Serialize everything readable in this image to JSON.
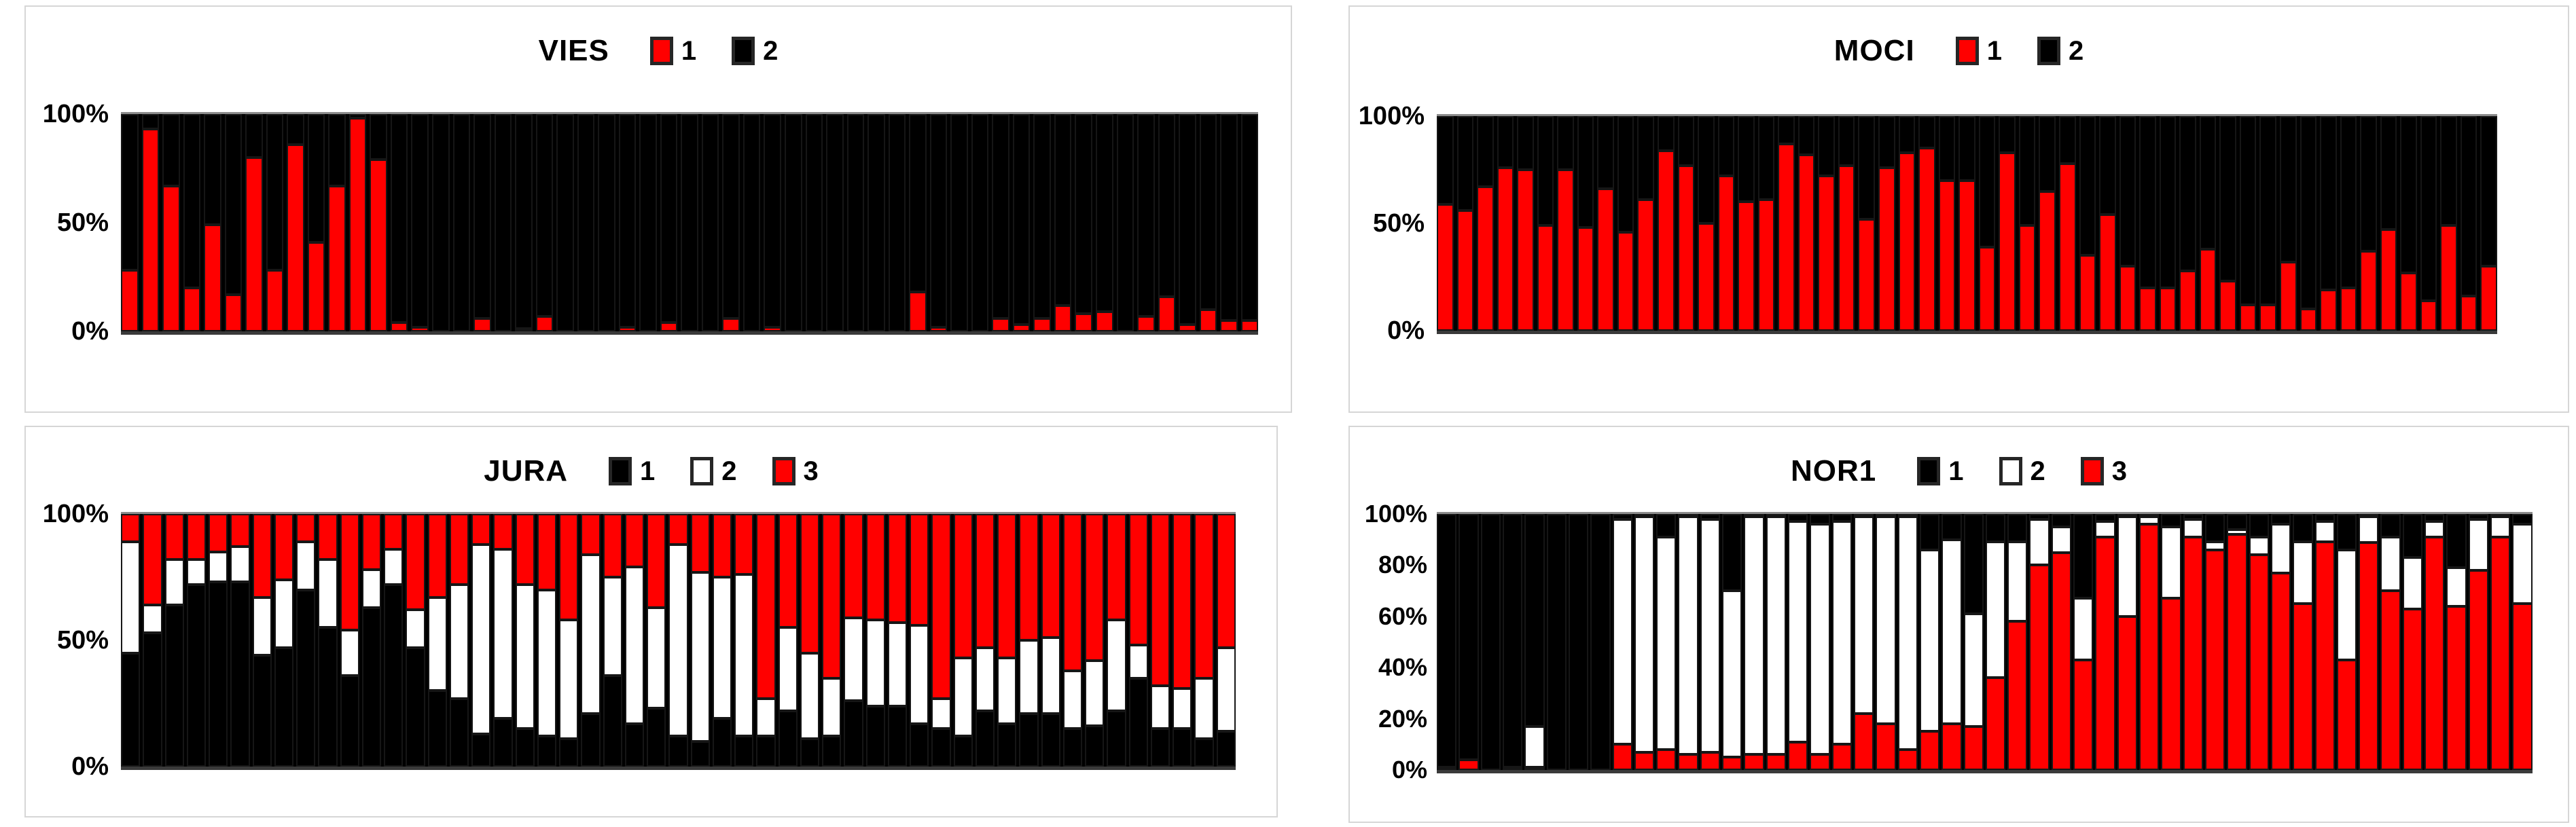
{
  "page": {
    "background": "#ffffff"
  },
  "chart_data": [
    {
      "id": "vies",
      "type": "bar",
      "subtype": "stacked-percent-column",
      "title": "VIES",
      "legend": [
        {
          "label": "1",
          "color": "#ff0000"
        },
        {
          "label": "2",
          "color": "#000000"
        }
      ],
      "legend_position": "top-center",
      "yticks": [
        {
          "label": "100%",
          "value": 100
        },
        {
          "label": "50%",
          "value": 50
        },
        {
          "label": "0%",
          "value": 0
        }
      ],
      "ylim": [
        0,
        100
      ],
      "grid": false,
      "n_bars": 55,
      "stack_bottom_to_top": [
        "1",
        "2"
      ],
      "series": [
        {
          "name": "1",
          "color": "#ff0000",
          "values": [
            28,
            93,
            67,
            20,
            49,
            17,
            80,
            28,
            86,
            41,
            67,
            98,
            79,
            4,
            2,
            0,
            0,
            6,
            0,
            1,
            7,
            0,
            0,
            0,
            2,
            0,
            4,
            0,
            0,
            6,
            0,
            2,
            0,
            0,
            0,
            0,
            0,
            0,
            18,
            2,
            0,
            0,
            6,
            3,
            6,
            12,
            8,
            9,
            0,
            7,
            16,
            3,
            10,
            5,
            5
          ]
        },
        {
          "name": "2",
          "color": "#000000",
          "values": [
            72,
            7,
            33,
            80,
            51,
            83,
            20,
            72,
            14,
            59,
            33,
            2,
            21,
            96,
            98,
            100,
            100,
            94,
            100,
            99,
            93,
            100,
            100,
            100,
            98,
            100,
            96,
            100,
            100,
            94,
            100,
            98,
            100,
            100,
            100,
            100,
            100,
            100,
            82,
            98,
            100,
            100,
            94,
            97,
            94,
            88,
            92,
            91,
            100,
            93,
            84,
            97,
            90,
            95,
            95
          ]
        }
      ]
    },
    {
      "id": "moci",
      "type": "bar",
      "subtype": "stacked-percent-column",
      "title": "MOCI",
      "legend": [
        {
          "label": "1",
          "color": "#ff0000"
        },
        {
          "label": "2",
          "color": "#000000"
        }
      ],
      "legend_position": "top-center",
      "yticks": [
        {
          "label": "100%",
          "value": 100
        },
        {
          "label": "50%",
          "value": 50
        },
        {
          "label": "0%",
          "value": 0
        }
      ],
      "ylim": [
        0,
        100
      ],
      "grid": false,
      "n_bars": 53,
      "stack_bottom_to_top": [
        "1",
        "2"
      ],
      "series": [
        {
          "name": "1",
          "color": "#ff0000",
          "values": [
            59,
            56,
            67,
            76,
            75,
            49,
            75,
            48,
            66,
            46,
            61,
            84,
            77,
            50,
            72,
            60,
            61,
            87,
            82,
            72,
            77,
            52,
            76,
            83,
            85,
            70,
            70,
            39,
            83,
            49,
            65,
            78,
            35,
            54,
            30,
            20,
            20,
            28,
            38,
            23,
            12,
            12,
            32,
            10,
            19,
            20,
            37,
            47,
            27,
            14,
            49,
            16,
            30
          ]
        },
        {
          "name": "2",
          "color": "#000000",
          "values": [
            41,
            44,
            33,
            24,
            25,
            51,
            25,
            52,
            34,
            54,
            39,
            16,
            23,
            50,
            28,
            40,
            39,
            13,
            18,
            28,
            23,
            48,
            24,
            17,
            15,
            30,
            30,
            61,
            17,
            51,
            35,
            22,
            65,
            46,
            70,
            80,
            80,
            72,
            62,
            77,
            88,
            88,
            68,
            90,
            81,
            80,
            63,
            53,
            73,
            86,
            51,
            84,
            70
          ]
        }
      ]
    },
    {
      "id": "jura",
      "type": "bar",
      "subtype": "stacked-percent-column",
      "title": "JURA",
      "legend": [
        {
          "label": "1",
          "color": "#000000"
        },
        {
          "label": "2",
          "color": "#ffffff"
        },
        {
          "label": "3",
          "color": "#ff0000"
        }
      ],
      "legend_position": "top-center",
      "yticks": [
        {
          "label": "100%",
          "value": 100
        },
        {
          "label": "50%",
          "value": 50
        },
        {
          "label": "0%",
          "value": 0
        }
      ],
      "ylim": [
        0,
        100
      ],
      "grid": false,
      "n_bars": 51,
      "stack_bottom_to_top": [
        "1",
        "2",
        "3"
      ],
      "series": [
        {
          "name": "1",
          "color": "#000000",
          "values": [
            45,
            53,
            64,
            72,
            73,
            73,
            44,
            47,
            70,
            55,
            36,
            63,
            72,
            47,
            30,
            27,
            13,
            19,
            15,
            12,
            11,
            21,
            36,
            17,
            23,
            12,
            10,
            19,
            12,
            12,
            22,
            11,
            12,
            26,
            24,
            24,
            17,
            15,
            12,
            22,
            17,
            21,
            21,
            15,
            16,
            22,
            35,
            15,
            15,
            11,
            14
          ]
        },
        {
          "name": "2",
          "color": "#ffffff",
          "values": [
            44,
            11,
            18,
            10,
            12,
            14,
            23,
            27,
            19,
            27,
            18,
            15,
            14,
            15,
            37,
            45,
            75,
            67,
            57,
            58,
            47,
            63,
            39,
            62,
            40,
            76,
            67,
            56,
            64,
            15,
            33,
            34,
            23,
            33,
            34,
            33,
            39,
            12,
            31,
            25,
            26,
            29,
            30,
            23,
            26,
            36,
            13,
            17,
            16,
            24,
            33
          ]
        },
        {
          "name": "3",
          "color": "#ff0000",
          "values": [
            11,
            36,
            18,
            18,
            15,
            13,
            33,
            26,
            11,
            18,
            46,
            22,
            14,
            38,
            33,
            28,
            12,
            14,
            28,
            30,
            42,
            16,
            25,
            21,
            37,
            12,
            23,
            25,
            24,
            73,
            45,
            55,
            65,
            41,
            42,
            43,
            44,
            73,
            57,
            53,
            57,
            50,
            49,
            62,
            58,
            42,
            52,
            68,
            69,
            65,
            53
          ]
        }
      ]
    },
    {
      "id": "nor1",
      "type": "bar",
      "subtype": "stacked-percent-column",
      "title": "NOR1",
      "legend": [
        {
          "label": "1",
          "color": "#000000"
        },
        {
          "label": "2",
          "color": "#ffffff"
        },
        {
          "label": "3",
          "color": "#ff0000"
        }
      ],
      "legend_position": "top-center",
      "yticks": [
        {
          "label": "100%",
          "value": 100
        },
        {
          "label": "80%",
          "value": 80
        },
        {
          "label": "60%",
          "value": 60
        },
        {
          "label": "40%",
          "value": 40
        },
        {
          "label": "20%",
          "value": 20
        },
        {
          "label": "0%",
          "value": 0
        }
      ],
      "ylim": [
        0,
        100
      ],
      "grid": false,
      "n_bars": 50,
      "stack_bottom_to_top": [
        "3",
        "2",
        "1"
      ],
      "series": [
        {
          "name": "1",
          "color": "#000000",
          "values": [
            99,
            96,
            100,
            99,
            83,
            100,
            100,
            100,
            2,
            1,
            9,
            1,
            2,
            30,
            1,
            1,
            3,
            4,
            3,
            1,
            1,
            1,
            14,
            10,
            39,
            11,
            11,
            2,
            5,
            33,
            3,
            1,
            1,
            5,
            2,
            11,
            6,
            9,
            4,
            11,
            3,
            14,
            1,
            9,
            17,
            3,
            21,
            2,
            1,
            4
          ]
        },
        {
          "name": "2",
          "color": "#ffffff",
          "values": [
            0,
            0,
            0,
            0,
            16,
            0,
            0,
            0,
            88,
            92,
            83,
            93,
            91,
            65,
            93,
            93,
            86,
            90,
            87,
            77,
            81,
            91,
            71,
            72,
            44,
            53,
            31,
            18,
            10,
            24,
            6,
            39,
            3,
            28,
            7,
            3,
            2,
            7,
            19,
            24,
            8,
            43,
            10,
            21,
            20,
            6,
            15,
            20,
            8,
            31
          ]
        },
        {
          "name": "3",
          "color": "#ff0000",
          "values": [
            1,
            4,
            0,
            1,
            1,
            0,
            0,
            0,
            10,
            7,
            8,
            6,
            7,
            5,
            6,
            6,
            11,
            6,
            10,
            22,
            18,
            8,
            15,
            18,
            17,
            36,
            58,
            80,
            85,
            43,
            91,
            60,
            96,
            67,
            91,
            86,
            92,
            84,
            77,
            65,
            89,
            43,
            89,
            70,
            63,
            91,
            64,
            78,
            91,
            65
          ]
        }
      ]
    }
  ]
}
